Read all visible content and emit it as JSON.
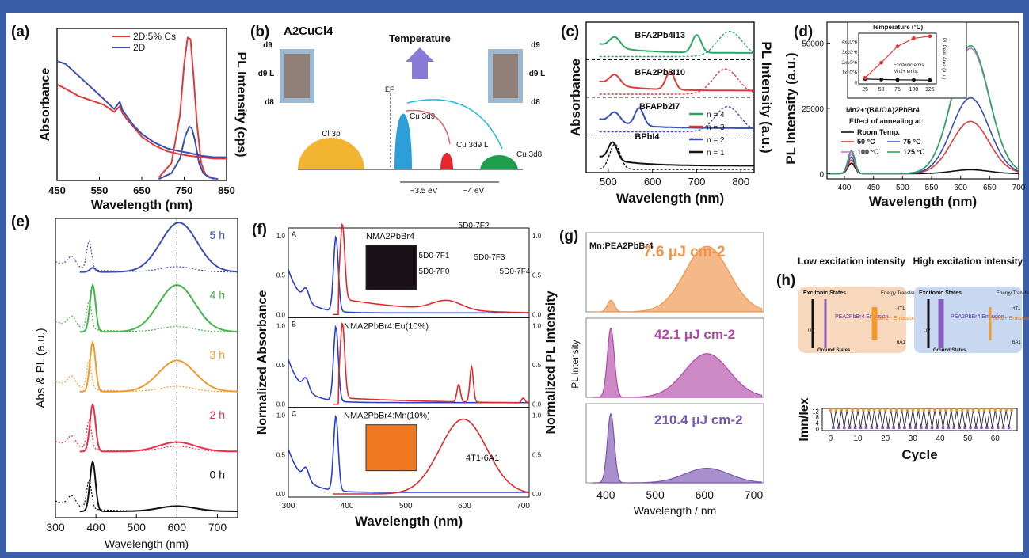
{
  "figure": {
    "chart_data": [
      {
        "panel": "(a)",
        "type": "line",
        "xlabel": "Wavelength (nm)",
        "ylabel": "Absorbance",
        "y2label": "PL Intensity (cps)",
        "xlim": [
          450,
          850
        ],
        "xticks": [
          450,
          550,
          650,
          750,
          850
        ],
        "legend": [
          "2D:5% Cs",
          "2D"
        ],
        "series": [
          {
            "name": "2D:5% Cs",
            "kind": "absorbance",
            "color": "#e03a3a",
            "x": [
              450,
              470,
              500,
              530,
              560,
              585,
              598,
              605,
              615,
              630,
              650,
              680,
              710,
              740,
              760,
              790,
              820,
              850
            ],
            "y": [
              0.66,
              0.63,
              0.58,
              0.55,
              0.52,
              0.47,
              0.51,
              0.46,
              0.42,
              0.37,
              0.3,
              0.24,
              0.2,
              0.18,
              0.17,
              0.16,
              0.15,
              0.15
            ]
          },
          {
            "name": "2D",
            "kind": "absorbance",
            "color": "#3a4fb0",
            "x": [
              450,
              470,
              500,
              530,
              560,
              585,
              598,
              605,
              615,
              630,
              650,
              680,
              710,
              740,
              760,
              790,
              820,
              850
            ],
            "y": [
              0.82,
              0.8,
              0.72,
              0.64,
              0.56,
              0.49,
              0.54,
              0.48,
              0.44,
              0.38,
              0.32,
              0.26,
              0.22,
              0.2,
              0.19,
              0.17,
              0.16,
              0.16
            ]
          },
          {
            "name": "2D:5% Cs",
            "kind": "PL",
            "color": "#e03a3a",
            "x": [
              690,
              720,
              740,
              750,
              758,
              765,
              772,
              780,
              790,
              800,
              820
            ],
            "y": [
              0.02,
              0.12,
              0.45,
              0.8,
              0.98,
              0.97,
              0.72,
              0.4,
              0.12,
              0.04,
              0.01
            ]
          },
          {
            "name": "2D",
            "kind": "PL",
            "color": "#3a4fb0",
            "x": [
              690,
              720,
              740,
              752,
              762,
              768,
              775,
              785,
              795,
              810,
              830
            ],
            "y": [
              0.01,
              0.05,
              0.15,
              0.3,
              0.37,
              0.36,
              0.28,
              0.12,
              0.05,
              0.02,
              0.01
            ]
          }
        ]
      },
      {
        "panel": "(b)",
        "type": "diagram",
        "title": "A2CuCl4",
        "labels": [
          "Temperature",
          "Cl 3p",
          "Cu 3d9",
          "Cu 3d9 L",
          "Cu 3d8",
          "~3.5 eV",
          "~4 eV",
          "EF",
          "d9",
          "d9 L",
          "d8"
        ]
      },
      {
        "panel": "(c)",
        "type": "line",
        "xlabel": "Wavelength (nm)",
        "ylabel": "Absorbance",
        "y2label": "PL Intensity (a.u.)",
        "xlim": [
          450,
          830
        ],
        "xticks": [
          500,
          600,
          700,
          800
        ],
        "legend": [
          "n = 4",
          "n = 3",
          "n = 2",
          "n = 1"
        ],
        "series": [
          {
            "name": "n = 4",
            "label": "BFA2Pb4I13",
            "color": "#2aa860",
            "offset": 3
          },
          {
            "name": "n = 3",
            "label": "BFA2Pb3I10",
            "color": "#e03a3a",
            "offset": 2
          },
          {
            "name": "n = 2",
            "label": "BFAPb2I7",
            "color": "#3a4fb0",
            "offset": 1
          },
          {
            "name": "n = 1",
            "label": "BPbI4",
            "color": "#111111",
            "offset": 0
          }
        ]
      },
      {
        "panel": "(d)",
        "type": "line",
        "xlabel": "Wavelength (nm)",
        "ylabel": "PL Intensity (a.u.)",
        "xlim": [
          370,
          700
        ],
        "xticks": [
          400,
          450,
          500,
          550,
          600,
          650,
          700
        ],
        "ylim": [
          -2000,
          58000
        ],
        "yticks": [
          0,
          25000,
          50000
        ],
        "annotation": [
          "Mn2+:(BA/OA)2PbBr4",
          "Effect of annealing at:"
        ],
        "series": [
          {
            "name": "Room Temp.",
            "color": "#111111",
            "peak": 1500
          },
          {
            "name": "50 °C",
            "color": "#e03a3a",
            "peak": 20000
          },
          {
            "name": "75 °C",
            "color": "#3a4fb0",
            "peak": 29000
          },
          {
            "name": "100 °C",
            "color": "#c86fd8",
            "peak": 48000
          },
          {
            "name": "125 °C",
            "color": "#2aa860",
            "peak": 49000
          }
        ],
        "inset": {
          "title": "Temperature (°C)",
          "ylabel": "PL Peak Area (a.u.)",
          "x": [
            25,
            50,
            75,
            100,
            125
          ],
          "series": [
            {
              "name": "Excitonic emis.",
              "color": "#111111",
              "y": [
                280000,
                240000,
                200000,
                190000,
                170000
              ]
            },
            {
              "name": "Mn2+ emis.",
              "color": "#e03a3a",
              "y": [
                400000,
                1900000,
                3500000,
                4300000,
                4500000
              ]
            }
          ],
          "yticks": [
            "0",
            "1x10^6",
            "2x10^6",
            "3x10^6",
            "4x10^6"
          ]
        }
      },
      {
        "panel": "(e)",
        "type": "line",
        "xlabel": "Wavelength (nm)",
        "ylabel": "Abs & PL (a.u.)",
        "xlim": [
          300,
          750
        ],
        "xticks": [
          300,
          400,
          500,
          600,
          700
        ],
        "series": [
          {
            "name": "5 h",
            "color": "#3a4fb0",
            "pl_peak": 605
          },
          {
            "name": "4 h",
            "color": "#45b54a",
            "pl_peak": 600
          },
          {
            "name": "3 h",
            "color": "#f39a2b",
            "pl_peak": 600
          },
          {
            "name": "2 h",
            "color": "#e8304a",
            "pl_peak": 600
          },
          {
            "name": "0 h",
            "color": "#111111",
            "pl_peak": 600
          }
        ]
      },
      {
        "panel": "(f)",
        "type": "line",
        "xlabel": "Wavelength (nm)",
        "ylabel": "Normalized Absorbance",
        "y2label": "Normalized PL Intensity",
        "xlim": [
          300,
          710
        ],
        "xticks": [
          300,
          400,
          500,
          600,
          700
        ],
        "subpanels": [
          {
            "id": "A",
            "label": "NMA2PbBr4"
          },
          {
            "id": "B",
            "label": "NMA2PbBr4:Eu(10%)",
            "annotations": [
              "5D0-7F0",
              "5D0-7F1",
              "5D0-7F2",
              "5D0-7F3",
              "5D0-7F4"
            ]
          },
          {
            "id": "C",
            "label": "NMA2PbBr4:Mn(10%)",
            "annotations": [
              "4T1-6A1"
            ]
          }
        ]
      },
      {
        "panel": "(g)",
        "type": "area",
        "title": "Mn:PEA2PbBr4",
        "xlabel": "Wavelength / nm",
        "ylabel": "PL intensity",
        "xlim": [
          360,
          720
        ],
        "xticks": [
          400,
          500,
          600,
          700
        ],
        "series": [
          {
            "name": "7.6 μJ cm-2",
            "color": "#f0944a",
            "exciton": 0.16,
            "mn": 0.9
          },
          {
            "name": "42.1 μJ cm-2",
            "color": "#b04aa8",
            "exciton": 0.95,
            "mn": 0.6
          },
          {
            "name": "210.4 μJ cm-2",
            "color": "#7a55b0",
            "exciton": 0.95,
            "mn": 0.2
          }
        ]
      },
      {
        "panel": "(h)",
        "type": "scatter",
        "titles": [
          "Low excitation intensity",
          "High excitation intensity"
        ],
        "diagram_labels": [
          "Excitonic States",
          "Energy Transfer",
          "4T1",
          "PEA2PbBr4 Emission",
          "Mn2+ Emission",
          "UV",
          "Ground States",
          "6A1"
        ],
        "xlabel": "Cycle",
        "ylabel": "Imn/Iex",
        "xlim": [
          -3,
          68
        ],
        "xticks": [
          0,
          10,
          20,
          30,
          40,
          50,
          60
        ],
        "ylim": [
          -1,
          14
        ],
        "yticks": [
          0,
          4,
          8,
          12
        ],
        "series": [
          {
            "name": "high",
            "color": "#f39a2b",
            "y": 13
          },
          {
            "name": "low",
            "color": "#8a5cc0",
            "y": 1
          }
        ]
      }
    ]
  }
}
